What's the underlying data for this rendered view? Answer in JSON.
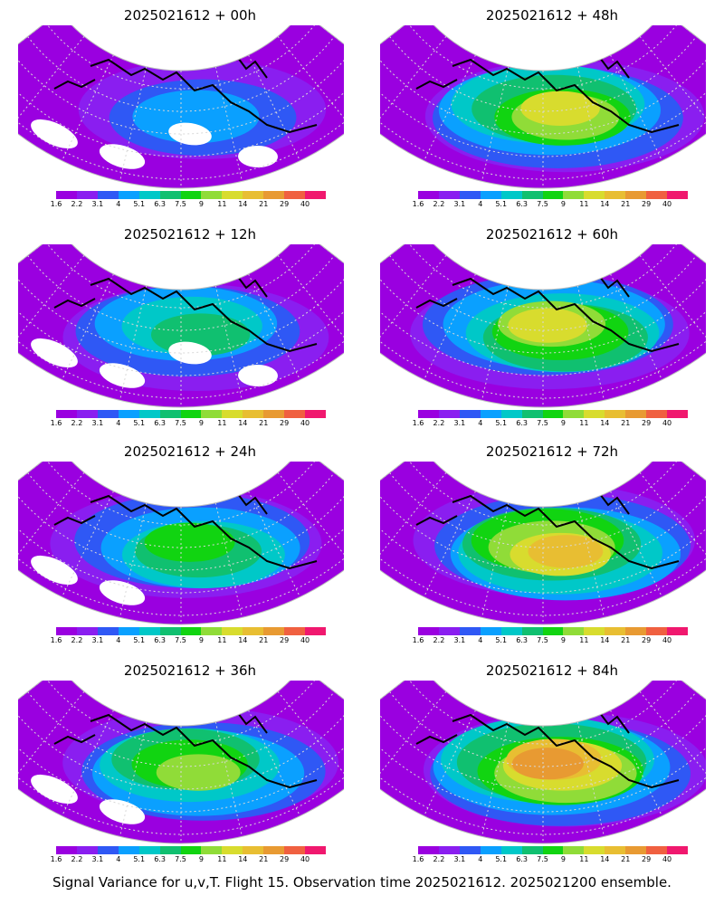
{
  "panels": [
    {
      "title": "2025021612 + 00h",
      "intensity": 0.15
    },
    {
      "title": "2025021612 + 48h",
      "intensity": 0.62
    },
    {
      "title": "2025021612 + 12h",
      "intensity": 0.3
    },
    {
      "title": "2025021612 + 60h",
      "intensity": 0.7
    },
    {
      "title": "2025021612 + 24h",
      "intensity": 0.4
    },
    {
      "title": "2025021612 + 72h",
      "intensity": 0.8
    },
    {
      "title": "2025021612 + 36h",
      "intensity": 0.52
    },
    {
      "title": "2025021612 + 84h",
      "intensity": 0.9
    }
  ],
  "colorbar": {
    "labels": [
      "1.6",
      "2.2",
      "3.1",
      "4",
      "5.1",
      "6.3",
      "7.5",
      "9",
      "11",
      "14",
      "21",
      "29",
      "40"
    ],
    "colors": [
      "#9a00e0",
      "#8a1ef0",
      "#2f58f5",
      "#0aa0ff",
      "#00c8c8",
      "#10c070",
      "#11d411",
      "#90dc38",
      "#d8dc2e",
      "#e8be32",
      "#e89a32",
      "#f06040",
      "#f0186e"
    ]
  },
  "footer": "Signal Variance for u,v,T. Flight 15. Observation time 2025021612. 2025021200 ensemble."
}
